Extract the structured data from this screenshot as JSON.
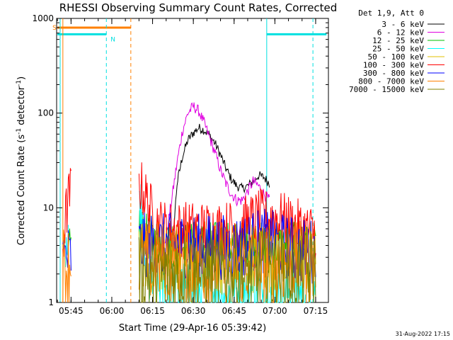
{
  "chart_data": {
    "type": "line",
    "title": "RHESSI Observing Summary Count Rates, Corrected",
    "xlabel": "Start Time (29-Apr-16 05:39:42)",
    "ylabel": "Corrected Count Rate (s",
    "ylabel_sup1": "-1",
    "ylabel_mid": " detector",
    "ylabel_sup2": "-1",
    "ylabel_end": ")",
    "y_scale": "log",
    "ylim": [
      1,
      1000
    ],
    "xlim": [
      "05:39:42",
      "07:19:42"
    ],
    "x_ticks": [
      {
        "t": "05:45",
        "label": "05:45"
      },
      {
        "t": "06:00",
        "label": "06:00"
      },
      {
        "t": "06:15",
        "label": "06:15"
      },
      {
        "t": "06:30",
        "label": "06:30"
      },
      {
        "t": "06:45",
        "label": "06:45"
      },
      {
        "t": "07:00",
        "label": "07:00"
      },
      {
        "t": "07:15",
        "label": "07:15"
      }
    ],
    "y_ticks": [
      {
        "v": 1,
        "label": "1"
      },
      {
        "v": 10,
        "label": "10"
      },
      {
        "v": 100,
        "label": "100"
      },
      {
        "v": 1000,
        "label": "1000"
      }
    ],
    "grid": false,
    "legend_header": "Det 1,9, Att 0",
    "legend_placement": "right",
    "series": [
      {
        "name": "3 - 6 keV",
        "color": "#000000",
        "points": [
          [
            "06:18",
            2
          ],
          [
            "06:22",
            3
          ],
          [
            "06:24",
            18
          ],
          [
            "06:26",
            35
          ],
          [
            "06:28",
            52
          ],
          [
            "06:30",
            62
          ],
          [
            "06:32",
            70
          ],
          [
            "06:34",
            66
          ],
          [
            "06:36",
            58
          ],
          [
            "06:38",
            48
          ],
          [
            "06:40",
            36
          ],
          [
            "06:42",
            26
          ],
          [
            "06:44",
            20
          ],
          [
            "06:46",
            17
          ],
          [
            "06:48",
            16
          ],
          [
            "06:50",
            17
          ],
          [
            "06:52",
            19
          ],
          [
            "06:54",
            22
          ],
          [
            "06:56",
            21
          ],
          [
            "06:58",
            18
          ]
        ]
      },
      {
        "name": "6 - 12 keV",
        "color": "#e000e0",
        "points": [
          [
            "06:18",
            3
          ],
          [
            "06:20",
            5
          ],
          [
            "06:22",
            12
          ],
          [
            "06:24",
            30
          ],
          [
            "06:26",
            65
          ],
          [
            "06:28",
            100
          ],
          [
            "06:30",
            118
          ],
          [
            "06:32",
            105
          ],
          [
            "06:34",
            78
          ],
          [
            "06:36",
            55
          ],
          [
            "06:38",
            38
          ],
          [
            "06:40",
            25
          ],
          [
            "06:42",
            18
          ],
          [
            "06:44",
            14
          ],
          [
            "06:46",
            12
          ],
          [
            "06:48",
            12
          ],
          [
            "06:50",
            15
          ],
          [
            "06:52",
            19
          ],
          [
            "06:54",
            17
          ],
          [
            "06:56",
            14
          ],
          [
            "06:58",
            12
          ]
        ]
      },
      {
        "name": "12 - 25 keV",
        "color": "#00c000",
        "points": [
          [
            "05:44",
            3
          ],
          [
            "05:45",
            4
          ],
          [
            "06:10",
            7
          ],
          [
            "06:12",
            5
          ],
          [
            "06:20",
            4.2
          ],
          [
            "06:40",
            4.1
          ],
          [
            "07:00",
            4
          ],
          [
            "07:10",
            4
          ],
          [
            "07:15",
            3.5
          ]
        ]
      },
      {
        "name": "25 - 50 keV",
        "color": "#00ffff",
        "points": [
          [
            "05:43",
            4
          ],
          [
            "05:44",
            3
          ],
          [
            "06:10",
            7
          ],
          [
            "06:11",
            9
          ],
          [
            "06:12",
            3
          ],
          [
            "06:14",
            1.5
          ],
          [
            "06:20",
            1.3
          ],
          [
            "06:40",
            1.3
          ],
          [
            "07:00",
            1.3
          ],
          [
            "07:15",
            1.3
          ]
        ]
      },
      {
        "name": "50 - 100 keV",
        "color": "#e0c000",
        "points": [
          [
            "06:10",
            4
          ],
          [
            "06:15",
            3
          ],
          [
            "06:30",
            3
          ],
          [
            "06:45",
            3
          ],
          [
            "07:00",
            3
          ],
          [
            "07:15",
            3
          ]
        ]
      },
      {
        "name": "100 - 300 keV",
        "color": "#ff0000",
        "points": [
          [
            "05:42",
            4
          ],
          [
            "05:43",
            8
          ],
          [
            "05:44",
            12
          ],
          [
            "05:45",
            16
          ],
          [
            "06:10",
            18
          ],
          [
            "06:12",
            14
          ],
          [
            "06:14",
            10
          ],
          [
            "06:16",
            7
          ],
          [
            "06:20",
            6
          ],
          [
            "06:30",
            6
          ],
          [
            "06:40",
            6
          ],
          [
            "06:45",
            6.2
          ],
          [
            "06:50",
            7
          ],
          [
            "06:55",
            8
          ],
          [
            "07:00",
            8
          ],
          [
            "07:05",
            7
          ],
          [
            "07:10",
            6
          ],
          [
            "07:15",
            5.5
          ]
        ]
      },
      {
        "name": "300 - 800 keV",
        "color": "#0000ff",
        "points": [
          [
            "05:42",
            3
          ],
          [
            "05:45",
            3
          ],
          [
            "06:10",
            4
          ],
          [
            "06:15",
            4
          ],
          [
            "06:30",
            4
          ],
          [
            "06:45",
            3.8
          ],
          [
            "06:55",
            4.5
          ],
          [
            "07:00",
            4.2
          ],
          [
            "07:10",
            3.5
          ],
          [
            "07:15",
            3.5
          ]
        ]
      },
      {
        "name": "800 - 7000 keV",
        "color": "#ff8000",
        "points": [
          [
            "05:42",
            2.5
          ],
          [
            "05:45",
            2.5
          ],
          [
            "06:10",
            2.8
          ],
          [
            "06:15",
            2.7
          ],
          [
            "06:30",
            2.6
          ],
          [
            "06:45",
            2.6
          ],
          [
            "07:00",
            2.6
          ],
          [
            "07:15",
            2.6
          ]
        ]
      },
      {
        "name": "7000 - 15000 keV",
        "color": "#808000",
        "points": [
          [
            "06:10",
            2
          ],
          [
            "06:30",
            2
          ],
          [
            "07:00",
            2
          ],
          [
            "07:15",
            2
          ]
        ]
      }
    ],
    "flag_bars": [
      {
        "label": "S",
        "color": "#ff8000",
        "start": "05:40",
        "end": "06:07",
        "value": 800
      },
      {
        "label": "N",
        "color": "#00e0e0",
        "start": "05:40",
        "end": "05:58",
        "value": 680
      },
      {
        "label": "",
        "color": "#00e0e0",
        "start": "06:57",
        "end": "07:19",
        "value": 680
      }
    ],
    "vertical_markers": [
      {
        "t": "05:41",
        "color": "#00e0e0",
        "style": "solid"
      },
      {
        "t": "05:42",
        "color": "#ff8000",
        "style": "solid"
      },
      {
        "t": "05:58",
        "color": "#00e0e0",
        "style": "dashed"
      },
      {
        "t": "06:07",
        "color": "#ff8000",
        "style": "dashed"
      },
      {
        "t": "06:57",
        "color": "#00e0e0",
        "style": "solid"
      },
      {
        "t": "07:14",
        "color": "#00e0e0",
        "style": "dashed"
      }
    ],
    "data_gaps": [
      [
        "05:46",
        "06:08"
      ]
    ]
  },
  "footer": {
    "date": "31-Aug-2022 17:15"
  }
}
